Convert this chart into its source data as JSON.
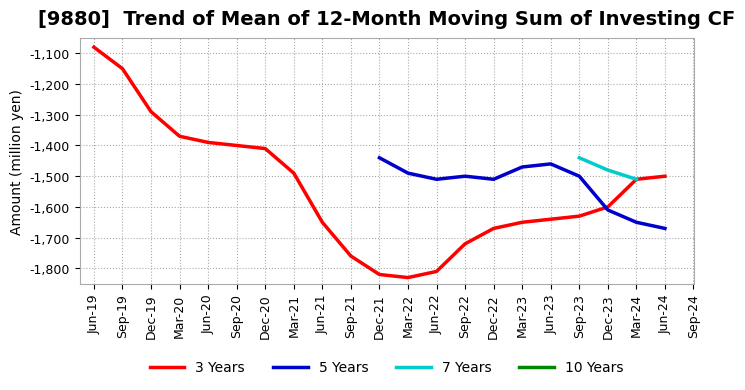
{
  "title": "[9880]  Trend of Mean of 12-Month Moving Sum of Investing CF",
  "ylabel": "Amount (million yen)",
  "ylim": [
    -1850,
    -1050
  ],
  "yticks": [
    -1800,
    -1700,
    -1600,
    -1500,
    -1400,
    -1300,
    -1200,
    -1100
  ],
  "background_color": "#ffffff",
  "grid_color": "#aaaaaa",
  "series": {
    "3years": {
      "color": "#ff0000",
      "label": "3 Years",
      "x": [
        0,
        1,
        2,
        3,
        4,
        5,
        6,
        7,
        8,
        9,
        10,
        11,
        12,
        13,
        14,
        15,
        16,
        17,
        18,
        19,
        20
      ],
      "y": [
        -1080,
        -1150,
        -1290,
        -1370,
        -1390,
        -1400,
        -1410,
        -1490,
        -1650,
        -1760,
        -1820,
        -1830,
        -1810,
        -1720,
        -1670,
        -1650,
        -1640,
        -1630,
        -1600,
        -1510,
        -1500
      ]
    },
    "5years": {
      "color": "#0000cc",
      "label": "5 Years",
      "x": [
        10,
        11,
        12,
        13,
        14,
        15,
        16,
        17,
        18,
        19,
        20
      ],
      "y": [
        -1440,
        -1490,
        -1510,
        -1500,
        -1510,
        -1470,
        -1460,
        -1500,
        -1610,
        -1650,
        -1670
      ]
    },
    "7years": {
      "color": "#00cccc",
      "label": "7 Years",
      "x": [
        17,
        18,
        19
      ],
      "y": [
        -1440,
        -1480,
        -1510
      ]
    },
    "10years": {
      "color": "#008800",
      "label": "10 Years",
      "x": [],
      "y": []
    }
  },
  "xtick_labels": [
    "Jun-19",
    "Sep-19",
    "Dec-19",
    "Mar-20",
    "Jun-20",
    "Sep-20",
    "Dec-20",
    "Mar-21",
    "Jun-21",
    "Sep-21",
    "Dec-21",
    "Mar-22",
    "Jun-22",
    "Sep-22",
    "Dec-22",
    "Mar-23",
    "Jun-23",
    "Sep-23",
    "Dec-23",
    "Mar-24",
    "Jun-24",
    "Sep-24"
  ],
  "title_fontsize": 14,
  "axis_fontsize": 10,
  "tick_fontsize": 9
}
